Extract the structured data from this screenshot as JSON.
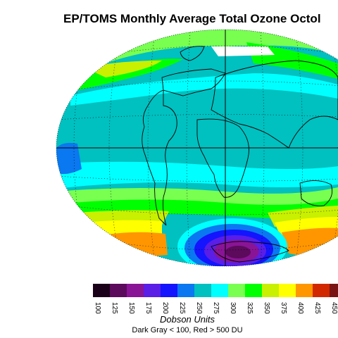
{
  "title": "EP/TOMS Monthly Average Total Ozone Octol",
  "colorbar": {
    "colors": [
      "#1a0018",
      "#5c0a5c",
      "#8a1496",
      "#5a1ee6",
      "#1414ff",
      "#0a78f0",
      "#00c0c0",
      "#00ffff",
      "#78ff50",
      "#00ff00",
      "#c8f000",
      "#ffff00",
      "#ff9600",
      "#d22800",
      "#7a1414"
    ],
    "labels": [
      "100",
      "125",
      "150",
      "175",
      "200",
      "225",
      "250",
      "275",
      "300",
      "325",
      "350",
      "375",
      "400",
      "425",
      "450"
    ],
    "units": "Dobson Units",
    "note": "Dark Gray < 100, Red > 500 DU"
  }
}
